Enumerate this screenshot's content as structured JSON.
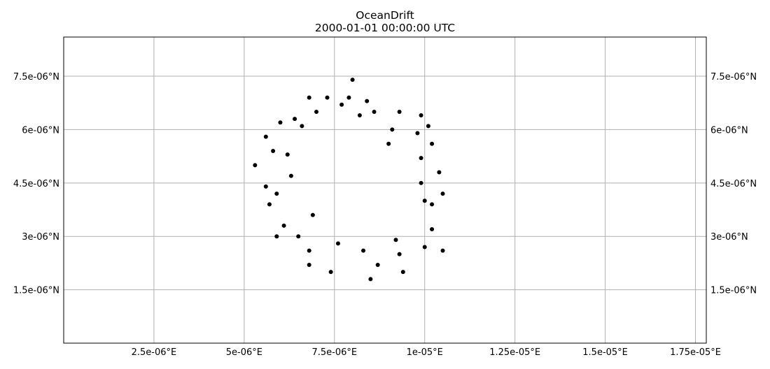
{
  "chart_data": {
    "type": "scatter",
    "title": "OceanDrift",
    "subtitle": "2000-01-01 00:00:00 UTC",
    "xlabel": "",
    "ylabel": "",
    "xlim": [
      0.0,
      1.78e-05
    ],
    "ylim": [
      0.0,
      8.6e-06
    ],
    "grid": true,
    "marker_color": "#000000",
    "grid_color": "#b0b0b0",
    "x_ticks": [
      {
        "value": 2.5e-06,
        "label": "2.5e-06°E"
      },
      {
        "value": 5e-06,
        "label": "5e-06°E"
      },
      {
        "value": 7.5e-06,
        "label": "7.5e-06°E"
      },
      {
        "value": 1e-05,
        "label": "1e-05°E"
      },
      {
        "value": 1.25e-05,
        "label": "1.25e-05°E"
      },
      {
        "value": 1.5e-05,
        "label": "1.5e-05°E"
      },
      {
        "value": 1.75e-05,
        "label": "1.75e-05°E"
      }
    ],
    "y_ticks": [
      {
        "value": 1.5e-06,
        "label": "1.5e-06°N"
      },
      {
        "value": 3e-06,
        "label": "3e-06°N"
      },
      {
        "value": 4.5e-06,
        "label": "4.5e-06°N"
      },
      {
        "value": 6e-06,
        "label": "6e-06°N"
      },
      {
        "value": 7.5e-06,
        "label": "7.5e-06°N"
      }
    ],
    "points": [
      [
        8e-06,
        7.4e-06
      ],
      [
        6.8e-06,
        6.9e-06
      ],
      [
        7.3e-06,
        6.9e-06
      ],
      [
        7.9e-06,
        6.9e-06
      ],
      [
        8.4e-06,
        6.8e-06
      ],
      [
        7e-06,
        6.5e-06
      ],
      [
        8.6e-06,
        6.5e-06
      ],
      [
        9.3e-06,
        6.5e-06
      ],
      [
        9.9e-06,
        6.4e-06
      ],
      [
        6.4e-06,
        6.3e-06
      ],
      [
        6e-06,
        6.2e-06
      ],
      [
        1.01e-05,
        6.1e-06
      ],
      [
        9.8e-06,
        5.9e-06
      ],
      [
        5.6e-06,
        5.8e-06
      ],
      [
        1.02e-05,
        5.6e-06
      ],
      [
        5.8e-06,
        5.4e-06
      ],
      [
        5.3e-06,
        5e-06
      ],
      [
        1.04e-05,
        4.8e-06
      ],
      [
        5.6e-06,
        4.4e-06
      ],
      [
        1.05e-05,
        4.2e-06
      ],
      [
        5.7e-06,
        3.9e-06
      ],
      [
        1.02e-05,
        3.9e-06
      ],
      [
        6.1e-06,
        3.3e-06
      ],
      [
        1.02e-05,
        3.2e-06
      ],
      [
        5.9e-06,
        3e-06
      ],
      [
        6.8e-06,
        2.6e-06
      ],
      [
        1e-05,
        2.7e-06
      ],
      [
        1.05e-05,
        2.6e-06
      ],
      [
        9.3e-06,
        2.5e-06
      ],
      [
        6.8e-06,
        2.2e-06
      ],
      [
        8.7e-06,
        2.2e-06
      ],
      [
        7.4e-06,
        2e-06
      ],
      [
        9.4e-06,
        2e-06
      ],
      [
        8.5e-06,
        1.8e-06
      ],
      [
        6.3e-06,
        4.7e-06
      ],
      [
        9.9e-06,
        4.5e-06
      ],
      [
        6.2e-06,
        5.3e-06
      ],
      [
        9.9e-06,
        5.2e-06
      ],
      [
        7.6e-06,
        2.8e-06
      ],
      [
        8.3e-06,
        2.6e-06
      ],
      [
        6.6e-06,
        6.1e-06
      ],
      [
        9.1e-06,
        6e-06
      ],
      [
        7.7e-06,
        6.7e-06
      ],
      [
        8.2e-06,
        6.4e-06
      ],
      [
        6.5e-06,
        3e-06
      ],
      [
        9.2e-06,
        2.9e-06
      ],
      [
        5.9e-06,
        4.2e-06
      ],
      [
        1e-05,
        4e-06
      ],
      [
        6.9e-06,
        3.6e-06
      ],
      [
        9e-06,
        5.6e-06
      ]
    ]
  }
}
